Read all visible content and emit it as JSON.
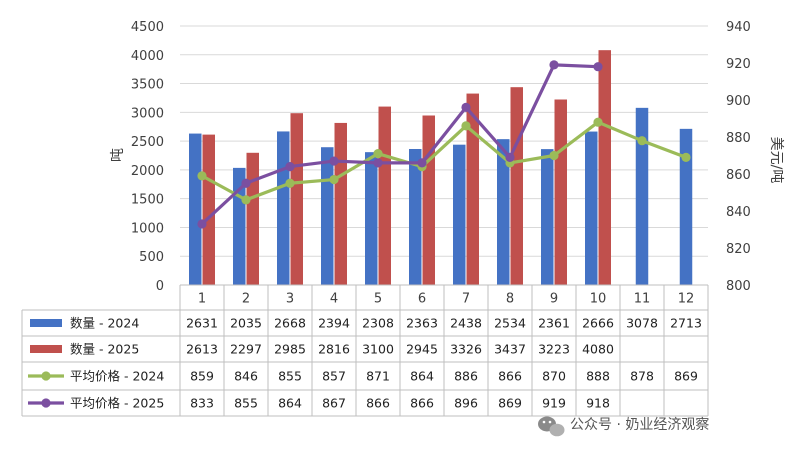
{
  "chart_data": {
    "type": "bar",
    "categories": [
      "1",
      "2",
      "3",
      "4",
      "5",
      "6",
      "7",
      "8",
      "9",
      "10",
      "11",
      "12"
    ],
    "series": [
      {
        "name": "数量 - 2024",
        "kind": "bar",
        "axis": "left",
        "color": "#4472c4",
        "values": [
          2631,
          2035,
          2668,
          2394,
          2308,
          2363,
          2438,
          2534,
          2361,
          2666,
          3078,
          2713
        ]
      },
      {
        "name": "数量 - 2025",
        "kind": "bar",
        "axis": "left",
        "color": "#c0504d",
        "values": [
          2613,
          2297,
          2985,
          2816,
          3100,
          2945,
          3326,
          3437,
          3223,
          4080,
          null,
          null
        ]
      },
      {
        "name": "平均价格 - 2024",
        "kind": "line",
        "axis": "right",
        "color": "#9bbb59",
        "values": [
          859,
          846,
          855,
          857,
          871,
          864,
          886,
          866,
          870,
          888,
          878,
          869
        ]
      },
      {
        "name": "平均价格 - 2025",
        "kind": "line",
        "axis": "right",
        "color": "#7b4fa0",
        "values": [
          833,
          855,
          864,
          867,
          866,
          866,
          896,
          869,
          919,
          918,
          null,
          null
        ]
      }
    ],
    "ylabel": "吨",
    "y2label": "美元/吨",
    "ylim": [
      0,
      4500
    ],
    "y2lim": [
      800,
      940
    ],
    "yticks": [
      0,
      500,
      1000,
      1500,
      2000,
      2500,
      3000,
      3500,
      4000,
      4500
    ],
    "y2ticks": [
      800,
      820,
      840,
      860,
      880,
      900,
      920,
      940
    ],
    "grid": true,
    "legend": "data-table"
  },
  "watermark": "公众号 · 奶业经济观察"
}
